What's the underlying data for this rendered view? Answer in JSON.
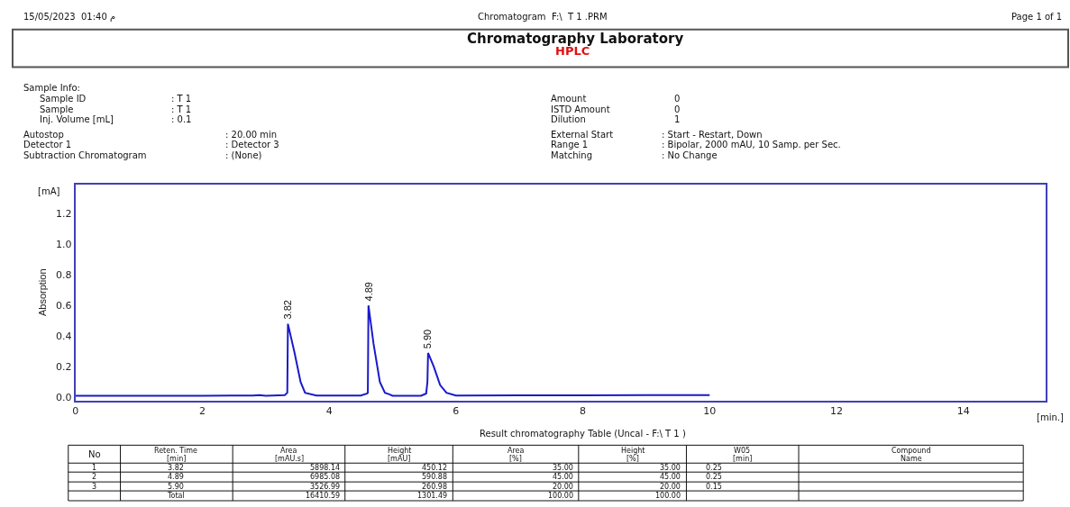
{
  "chart_data": {
    "type": "line",
    "title": "Chromatography Laboratory",
    "subtitle": "HPLC",
    "ylabel": "Absorption",
    "xlabel": "[min.]",
    "xlim": [
      0,
      15.3
    ],
    "xticks": [
      0,
      2,
      4,
      6,
      8,
      10,
      12,
      14
    ],
    "ylim": [
      -0.02,
      1.39
    ],
    "yticks": [
      {
        "value": 0,
        "label": "0.0"
      },
      0.2,
      0.4,
      0.6,
      0.8,
      {
        "value": 1,
        "label": "1.0"
      },
      1.2
    ],
    "marker": "none",
    "line_style": "solid",
    "series": [
      {
        "color": "#1a1acc",
        "x": [
          0,
          1,
          2,
          2.8,
          2.9,
          3.0,
          3.3,
          3.34,
          3.35,
          3.45,
          3.55,
          3.62,
          3.8,
          4.5,
          4.6,
          4.61,
          4.62,
          4.7,
          4.8,
          4.88,
          4.95,
          5.0,
          5.45,
          5.53,
          5.55,
          5.56,
          5.65,
          5.75,
          5.85,
          6.0,
          7,
          8,
          9,
          10
        ],
        "values": [
          0.01,
          0.01,
          0.01,
          0.012,
          0.015,
          0.01,
          0.015,
          0.03,
          0.48,
          0.3,
          0.1,
          0.03,
          0.012,
          0.012,
          0.025,
          0.03,
          0.6,
          0.35,
          0.1,
          0.03,
          0.02,
          0.01,
          0.01,
          0.025,
          0.1,
          0.29,
          0.2,
          0.08,
          0.03,
          0.012,
          0.013,
          0.013,
          0.014,
          0.015
        ]
      }
    ],
    "annotations": [
      {
        "text": "3.82",
        "x": 3.35,
        "y": 0.48
      },
      {
        "text": "4.89",
        "x": 4.62,
        "y": 0.6
      },
      {
        "text": "5.90",
        "x": 5.56,
        "y": 0.29
      },
      "[mA]",
      "15/05/2023  01:40 م",
      "Chromatogram  F:\\  T 1 .PRM",
      "Page 1 of 1",
      "Sample Info:",
      "Sample ID",
      ": T 1",
      "Sample",
      ": T 1",
      "Inj. Volume [mL]",
      ": 0.1",
      "Autostop",
      ": 20.00 min",
      "Detector 1",
      ": Detector 3",
      "Subtraction Chromatogram",
      ": (None)",
      "Amount",
      "0",
      "ISTD Amount",
      "0",
      "Dilution",
      "1",
      "External Start",
      ": Start - Restart, Down",
      "Range 1",
      ": Bipolar, 2000 mAU, 10 Samp. per Sec.",
      "Matching",
      ": No Change",
      "Result chromatography Table (Uncal - F:\\ T 1 )",
      "No",
      "Reten. Time",
      "[min]",
      "Area",
      "[mAU.s]",
      "Height",
      "[mAU]",
      "Area",
      "[%]",
      "Height",
      "[%]",
      "W05",
      "[min]",
      "Compound",
      "Name",
      "1",
      "3.82",
      "5898.14",
      "450.12",
      "35.00",
      "35.00",
      "0.25",
      "2",
      "4.89",
      "6985.08",
      "590.88",
      "45.00",
      "45.00",
      "0.25",
      "3",
      "5.90",
      "3526.99",
      "260.98",
      "20.00",
      "20.00",
      "0.15",
      "Total",
      "16410.59",
      "1301.49",
      "100.00",
      "100.00"
    ]
  }
}
